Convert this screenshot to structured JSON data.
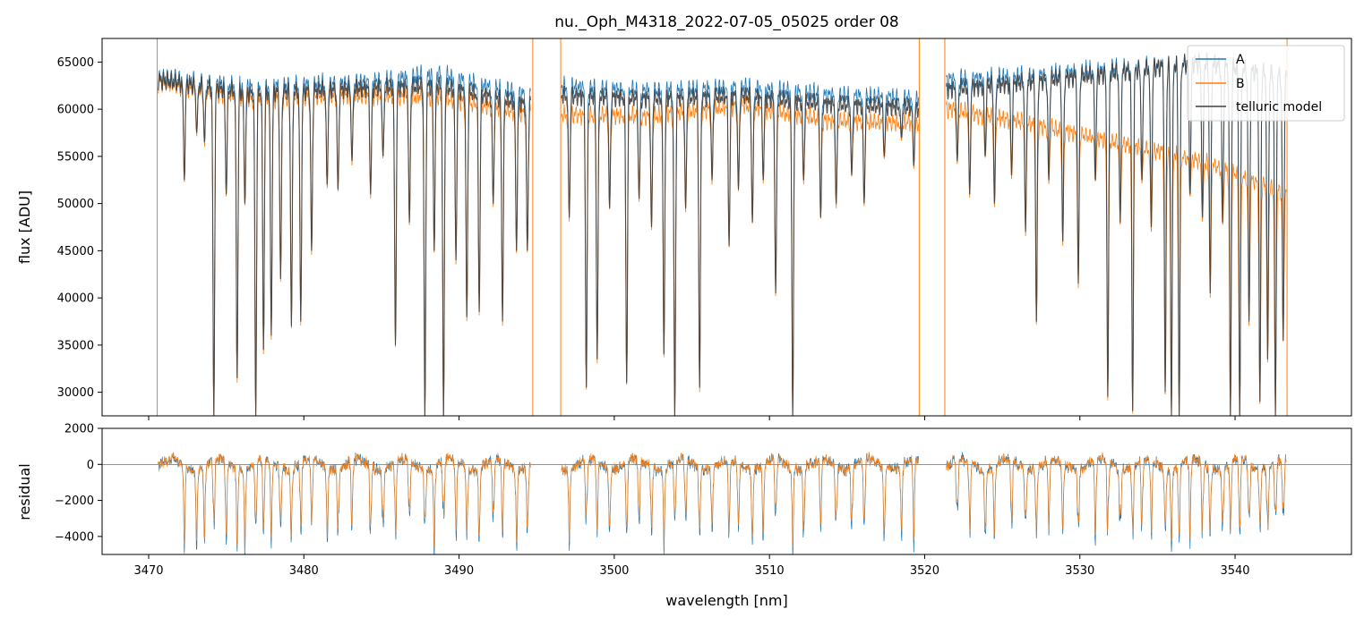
{
  "chart_data": {
    "type": "line",
    "title": "nu._Oph_M4318_2022-07-05_05025  order 08",
    "xlabel": "wavelength [nm]",
    "xlim": [
      3467,
      3547.5
    ],
    "xticks": [
      3470,
      3480,
      3490,
      3500,
      3510,
      3520,
      3530,
      3540
    ],
    "xtick_labels": [
      "3470",
      "3480",
      "3490",
      "3500",
      "3510",
      "3520",
      "3530",
      "3540"
    ],
    "panels": [
      {
        "name": "flux",
        "ylabel": "flux [ADU]",
        "ylim": [
          27500,
          67500
        ],
        "yticks": [
          30000,
          35000,
          40000,
          45000,
          50000,
          55000,
          60000,
          65000
        ],
        "ytick_labels": [
          "30000",
          "35000",
          "40000",
          "45000",
          "50000",
          "55000",
          "60000",
          "65000"
        ],
        "segments": [
          {
            "start": 3470.6,
            "end": 3494.6,
            "A_cont": [
              64500,
              63500,
              63800,
              64800,
              62500
            ],
            "B_cont": [
              64000,
              62200,
              62600,
              62400,
              60500
            ],
            "model_cont": [
              64200,
              62800,
              63200,
              63600,
              61500
            ]
          },
          {
            "start": 3496.6,
            "end": 3519.6,
            "A_cont": [
              63500,
              63000,
              63400,
              62600,
              62200
            ],
            "B_cont": [
              60500,
              60300,
              61500,
              59800,
              59600
            ],
            "model_cont": [
              62500,
              62200,
              62500,
              61600,
              61200
            ]
          },
          {
            "start": 3521.4,
            "end": 3543.3,
            "A_cont": [
              64200,
              64600,
              65400,
              66000,
              64500
            ],
            "B_cont": [
              61200,
              59500,
              57500,
              55500,
              52000
            ],
            "model_cont": [
              63200,
              64000,
              65000,
              66200,
              64600
            ]
          }
        ],
        "absorption_lines": [
          [
            3472.3,
            52500
          ],
          [
            3473.1,
            57500
          ],
          [
            3473.6,
            56500
          ],
          [
            3474.2,
            27500
          ],
          [
            3475.0,
            51000
          ],
          [
            3475.7,
            31500
          ],
          [
            3476.2,
            50000
          ],
          [
            3476.9,
            27500
          ],
          [
            3477.4,
            34500
          ],
          [
            3477.9,
            36000
          ],
          [
            3478.5,
            42000
          ],
          [
            3479.2,
            37000
          ],
          [
            3479.8,
            37500
          ],
          [
            3480.5,
            45000
          ],
          [
            3481.5,
            52000
          ],
          [
            3482.2,
            51500
          ],
          [
            3483.1,
            54500
          ],
          [
            3484.3,
            51000
          ],
          [
            3485.1,
            55000
          ],
          [
            3485.9,
            35000
          ],
          [
            3486.8,
            48000
          ],
          [
            3487.8,
            27500
          ],
          [
            3488.4,
            45000
          ],
          [
            3489.0,
            27500
          ],
          [
            3489.8,
            44000
          ],
          [
            3490.5,
            38000
          ],
          [
            3491.3,
            38500
          ],
          [
            3492.2,
            50000
          ],
          [
            3492.8,
            37500
          ],
          [
            3493.7,
            45000
          ],
          [
            3494.4,
            45000
          ],
          [
            3497.1,
            48500
          ],
          [
            3498.2,
            30500
          ],
          [
            3498.9,
            33500
          ],
          [
            3499.7,
            49500
          ],
          [
            3500.8,
            31000
          ],
          [
            3501.6,
            50500
          ],
          [
            3502.4,
            47500
          ],
          [
            3503.2,
            34000
          ],
          [
            3503.9,
            27500
          ],
          [
            3504.6,
            49500
          ],
          [
            3505.5,
            30500
          ],
          [
            3506.3,
            52500
          ],
          [
            3507.4,
            45500
          ],
          [
            3508.0,
            51500
          ],
          [
            3508.9,
            48000
          ],
          [
            3509.6,
            52500
          ],
          [
            3510.4,
            40500
          ],
          [
            3511.5,
            27500
          ],
          [
            3512.2,
            52500
          ],
          [
            3513.3,
            48500
          ],
          [
            3514.3,
            50000
          ],
          [
            3515.3,
            53000
          ],
          [
            3516.1,
            50000
          ],
          [
            3517.4,
            55000
          ],
          [
            3518.5,
            57000
          ],
          [
            3519.3,
            54000
          ],
          [
            3522.1,
            54500
          ],
          [
            3522.9,
            51000
          ],
          [
            3523.9,
            55000
          ],
          [
            3524.5,
            50000
          ],
          [
            3525.6,
            53000
          ],
          [
            3526.5,
            47000
          ],
          [
            3527.2,
            37500
          ],
          [
            3528.0,
            52500
          ],
          [
            3528.9,
            46000
          ],
          [
            3529.9,
            41500
          ],
          [
            3531.0,
            52500
          ],
          [
            3531.8,
            29500
          ],
          [
            3532.6,
            48000
          ],
          [
            3533.4,
            28000
          ],
          [
            3534.0,
            52500
          ],
          [
            3534.6,
            47500
          ],
          [
            3535.5,
            30000
          ],
          [
            3535.9,
            27500
          ],
          [
            3536.4,
            27500
          ],
          [
            3537.1,
            51000
          ],
          [
            3537.9,
            48500
          ],
          [
            3538.4,
            40500
          ],
          [
            3539.2,
            48000
          ],
          [
            3539.7,
            27500
          ],
          [
            3540.3,
            27500
          ],
          [
            3540.9,
            37500
          ],
          [
            3541.6,
            29000
          ],
          [
            3542.1,
            33500
          ],
          [
            3542.6,
            27500
          ],
          [
            3543.1,
            35500
          ]
        ],
        "gap_markers": [
          3470.55,
          3494.75,
          3496.55,
          3519.65,
          3521.3,
          3543.35
        ]
      },
      {
        "name": "residual",
        "ylabel": "residual",
        "ylim": [
          -5000,
          2000
        ],
        "yticks": [
          -4000,
          -2000,
          0,
          2000
        ],
        "ytick_labels": [
          "−4000",
          "−2000",
          "0",
          "2000"
        ],
        "reference_line": 0
      }
    ],
    "series": [
      {
        "name": "A",
        "color": "#1f77b4"
      },
      {
        "name": "B",
        "color": "#ff7f0e"
      },
      {
        "name": "telluric model",
        "color": "#404040"
      }
    ],
    "legend_position": "top-right",
    "grid": false
  }
}
